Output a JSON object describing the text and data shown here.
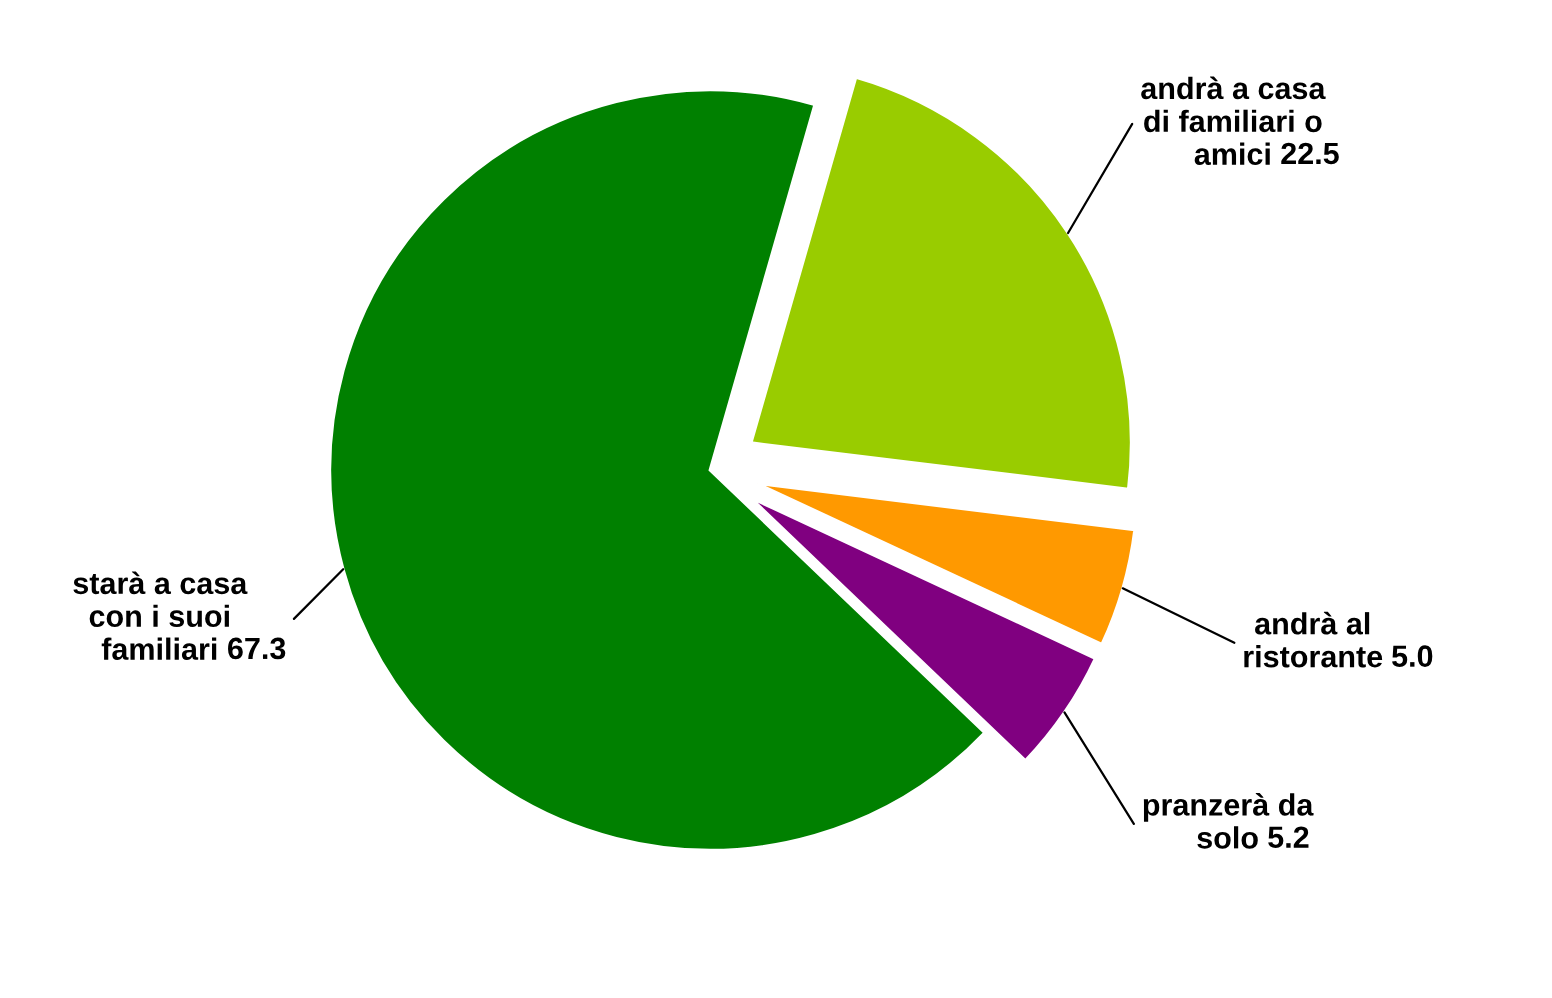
{
  "chart_data": {
    "type": "pie",
    "categories": [
      "andrà al\nristorante",
      "andrà a casa\ndi familiari o\namici",
      "starà a casa\ncon i suoi\nfamiliari",
      "pranzerà da\nsolo"
    ],
    "values": [
      5.0,
      22.5,
      67.3,
      5.2
    ],
    "value_labels": [
      "5.0",
      "22.5",
      "67.3",
      "5.2"
    ],
    "colors": [
      "#ff9900",
      "#99cc00",
      "#008000",
      "#800080"
    ]
  }
}
